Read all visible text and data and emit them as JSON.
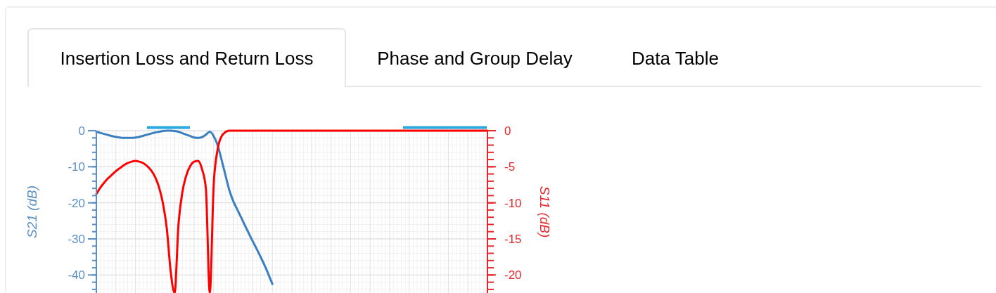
{
  "chart_data": {
    "type": "line",
    "annotations": [
      "Insertion Loss and Return Loss",
      "Phase and Group Delay",
      "Data Table"
    ],
    "ylabel": "S21 (dB)",
    "y2label": "S11 (dB)",
    "categories": [
      null,
      null,
      null,
      null,
      null,
      null,
      null,
      null,
      null,
      null,
      null,
      null,
      null,
      null,
      null,
      null,
      null,
      null,
      null,
      null,
      null,
      null,
      null,
      null,
      null,
      null,
      null,
      null,
      null,
      null,
      null,
      null,
      null,
      null,
      null,
      null,
      null,
      null,
      null,
      null,
      null,
      null,
      null,
      null,
      null,
      null,
      null,
      null,
      null,
      null,
      null,
      null,
      null,
      null,
      null,
      null,
      null,
      null,
      null,
      null,
      null,
      null,
      null,
      null,
      null,
      null,
      null,
      null,
      null,
      null,
      null,
      null,
      null,
      null,
      null,
      null,
      null,
      null,
      null,
      null,
      null,
      null,
      null,
      null,
      null,
      null,
      null,
      null,
      null,
      null,
      null,
      null,
      null,
      null,
      null,
      null,
      null,
      null,
      null,
      null,
      null
    ],
    "series": [
      {
        "color": "#3a7fc0",
        "values": [
          -0.3,
          -0.6,
          -0.9,
          -1.2,
          -1.5,
          -1.7,
          -1.9,
          -2.0,
          -2.0,
          -2.0,
          -1.9,
          -1.7,
          -1.4,
          -1.1,
          -0.8,
          -0.5,
          -0.3,
          -0.1,
          0,
          0,
          -0.1,
          -0.3,
          -0.7,
          -1.1,
          -1.5,
          -1.9,
          -2.0,
          -1.8,
          -1.1,
          -0.3,
          -1.5,
          -4.0,
          -8.0,
          -12.3,
          -16.5,
          -19.5,
          -21.8,
          -24.0,
          -26.3,
          -28.5,
          -30.7,
          -32.8,
          -35.0,
          -37.3,
          -39.8,
          -42.5,
          null,
          null,
          null,
          null,
          null,
          null,
          null,
          null,
          null,
          null,
          null,
          null,
          null,
          null,
          null,
          null,
          null,
          null,
          null,
          null,
          null,
          null,
          null,
          null,
          null,
          null,
          null,
          null,
          null,
          null,
          null,
          null,
          null,
          null,
          null,
          null,
          null,
          null,
          null,
          null,
          null,
          null,
          null,
          null,
          null,
          null,
          null,
          null,
          null,
          null,
          null,
          null,
          null,
          null,
          null
        ]
      },
      {
        "color": "#ff0000",
        "axis": "y2",
        "values": [
          -8.8,
          -7.9,
          -7.2,
          -6.6,
          -6.1,
          -5.6,
          -5.2,
          -4.8,
          -4.5,
          -4.3,
          -4.2,
          -4.3,
          -4.5,
          -4.9,
          -5.5,
          -6.4,
          -7.8,
          -10.0,
          -13.5,
          -19.5,
          -22.5,
          -13.0,
          -8.5,
          -6.2,
          -4.9,
          -4.3,
          -4.2,
          -5.3,
          -8.0,
          -22.5,
          -7.5,
          -2.6,
          -0.8,
          -0.2,
          0,
          0,
          0,
          0,
          0,
          0,
          0,
          0,
          0,
          0,
          0,
          0,
          0,
          0,
          0,
          0,
          0,
          0,
          0,
          0,
          0,
          0,
          0,
          0,
          0,
          0,
          0,
          0,
          0,
          0,
          0,
          0,
          0,
          0,
          0,
          0,
          0,
          0,
          0,
          0,
          0,
          0,
          0,
          0,
          0,
          0,
          0,
          0,
          0,
          0,
          0,
          0,
          0,
          0,
          0,
          0,
          0,
          0,
          0,
          0,
          0,
          0,
          0,
          0,
          0,
          0,
          0
        ]
      }
    ],
    "ylim": [
      -45,
      0
    ],
    "yticks": [
      0,
      -10,
      -20,
      -30,
      -40
    ],
    "y2lim": [
      -22.5,
      0
    ],
    "y2ticks": [
      0,
      -5,
      -10,
      -15,
      -20
    ],
    "grid": true,
    "line_style": "solid",
    "marker": "none"
  }
}
